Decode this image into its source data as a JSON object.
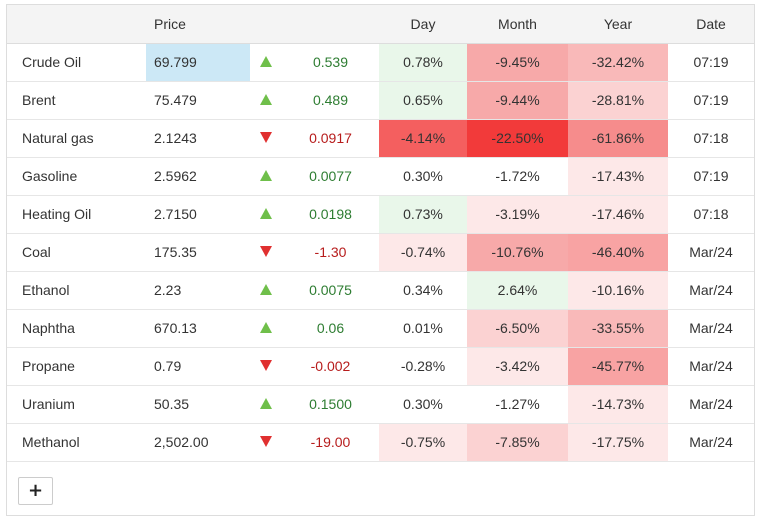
{
  "headers": {
    "name": "",
    "price": "Price",
    "change": "",
    "day": "Day",
    "month": "Month",
    "year": "Year",
    "date": "Date"
  },
  "rows": [
    {
      "name": "Crude Oil",
      "price": "69.799",
      "dir": "up",
      "change": "0.539",
      "day": "0.78%",
      "month": "-9.45%",
      "year": "-32.42%",
      "date": "07:19",
      "price_highlight": true,
      "bg": {
        "day": "#e9f7ea",
        "month": "#f7a9a9",
        "year": "#f9b9b9"
      }
    },
    {
      "name": "Brent",
      "price": "75.479",
      "dir": "up",
      "change": "0.489",
      "day": "0.65%",
      "month": "-9.44%",
      "year": "-28.81%",
      "date": "07:19",
      "bg": {
        "day": "#e9f7ea",
        "month": "#f7a9a9",
        "year": "#fbd2d2"
      }
    },
    {
      "name": "Natural gas",
      "price": "2.1243",
      "dir": "down",
      "change": "0.0917",
      "day": "-4.14%",
      "month": "-22.50%",
      "year": "-61.86%",
      "date": "07:18",
      "bg": {
        "day": "#f45f5f",
        "month": "#f23a3a",
        "year": "#f68c8c"
      }
    },
    {
      "name": "Gasoline",
      "price": "2.5962",
      "dir": "up",
      "change": "0.0077",
      "day": "0.30%",
      "month": "-1.72%",
      "year": "-17.43%",
      "date": "07:19",
      "bg": {
        "day": "#ffffff",
        "month": "#ffffff",
        "year": "#fde8e8"
      }
    },
    {
      "name": "Heating Oil",
      "price": "2.7150",
      "dir": "up",
      "change": "0.0198",
      "day": "0.73%",
      "month": "-3.19%",
      "year": "-17.46%",
      "date": "07:18",
      "bg": {
        "day": "#e9f7ea",
        "month": "#fde8e8",
        "year": "#fde8e8"
      }
    },
    {
      "name": "Coal",
      "price": "175.35",
      "dir": "down",
      "change": "-1.30",
      "day": "-0.74%",
      "month": "-10.76%",
      "year": "-46.40%",
      "date": "Mar/24",
      "bg": {
        "day": "#fde8e8",
        "month": "#f7a9a9",
        "year": "#f8a3a3"
      }
    },
    {
      "name": "Ethanol",
      "price": "2.23",
      "dir": "up",
      "change": "0.0075",
      "day": "0.34%",
      "month": "2.64%",
      "year": "-10.16%",
      "date": "Mar/24",
      "bg": {
        "day": "#ffffff",
        "month": "#e9f7ea",
        "year": "#fde8e8"
      }
    },
    {
      "name": "Naphtha",
      "price": "670.13",
      "dir": "up",
      "change": "0.06",
      "day": "0.01%",
      "month": "-6.50%",
      "year": "-33.55%",
      "date": "Mar/24",
      "bg": {
        "day": "#ffffff",
        "month": "#fbd2d2",
        "year": "#f9b9b9"
      }
    },
    {
      "name": "Propane",
      "price": "0.79",
      "dir": "down",
      "change": "-0.002",
      "day": "-0.28%",
      "month": "-3.42%",
      "year": "-45.77%",
      "date": "Mar/24",
      "bg": {
        "day": "#ffffff",
        "month": "#fde8e8",
        "year": "#f8a3a3"
      }
    },
    {
      "name": "Uranium",
      "price": "50.35",
      "dir": "up",
      "change": "0.1500",
      "day": "0.30%",
      "month": "-1.27%",
      "year": "-14.73%",
      "date": "Mar/24",
      "bg": {
        "day": "#ffffff",
        "month": "#ffffff",
        "year": "#fde8e8"
      }
    },
    {
      "name": "Methanol",
      "price": "2,502.00",
      "dir": "down",
      "change": "-19.00",
      "day": "-0.75%",
      "month": "-7.85%",
      "year": "-17.75%",
      "date": "Mar/24",
      "bg": {
        "day": "#fde8e8",
        "month": "#fbd2d2",
        "year": "#fde8e8"
      }
    }
  ],
  "add_button": {
    "label": "+"
  }
}
